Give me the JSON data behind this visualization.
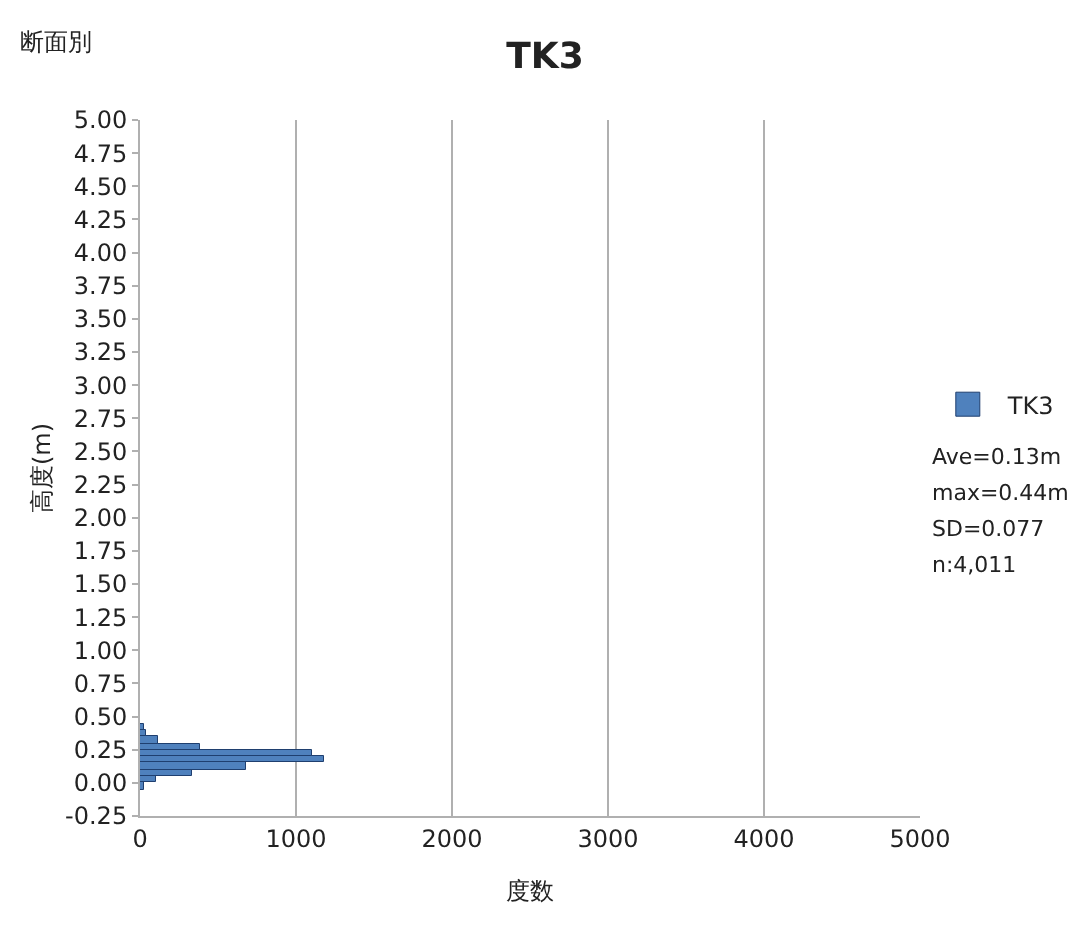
{
  "chart_data": {
    "type": "histogram",
    "orientation": "horizontal",
    "title": "TK3",
    "xlabel": "度数",
    "ylabel": "高度(m)",
    "annotations": [
      "断面別",
      "Ave=0.13m",
      "max=0.44m",
      "SD=0.077",
      "n:4,011"
    ],
    "bins": [
      -0.05,
      0.0,
      0.05,
      0.1,
      0.15,
      0.2,
      0.25,
      0.3,
      0.35,
      0.4,
      0.45
    ],
    "series": [
      {
        "name": "TK3",
        "color": "#4f81bd",
        "values": [
          30,
          100,
          330,
          680,
          1180,
          1100,
          390,
          120,
          40,
          20
        ]
      }
    ],
    "xlim": [
      0,
      5000
    ],
    "xticks": [
      0,
      1000,
      2000,
      3000,
      4000,
      5000
    ],
    "ylim": [
      -0.25,
      5.0
    ],
    "yticks": [
      {
        "value": -0.25,
        "label": "-0.25"
      },
      {
        "value": 0,
        "label": "0.00"
      },
      {
        "value": 0.25,
        "label": "0.25"
      },
      {
        "value": 0.5,
        "label": "0.50"
      },
      {
        "value": 0.75,
        "label": "0.75"
      },
      {
        "value": 1.0,
        "label": "1.00"
      },
      {
        "value": 1.25,
        "label": "1.25"
      },
      {
        "value": 1.5,
        "label": "1.50"
      },
      {
        "value": 1.75,
        "label": "1.75"
      },
      {
        "value": 2.0,
        "label": "2.00"
      },
      {
        "value": 2.25,
        "label": "2.25"
      },
      {
        "value": 2.5,
        "label": "2.50"
      },
      {
        "value": 2.75,
        "label": "2.75"
      },
      {
        "value": 3.0,
        "label": "3.00"
      },
      {
        "value": 3.25,
        "label": "3.25"
      },
      {
        "value": 3.5,
        "label": "3.50"
      },
      {
        "value": 3.75,
        "label": "3.75"
      },
      {
        "value": 4.0,
        "label": "4.00"
      },
      {
        "value": 4.25,
        "label": "4.25"
      },
      {
        "value": 4.5,
        "label": "4.50"
      },
      {
        "value": 4.75,
        "label": "4.75"
      },
      {
        "value": 5.0,
        "label": "5.00"
      }
    ],
    "grid": "x",
    "legend": "right"
  }
}
